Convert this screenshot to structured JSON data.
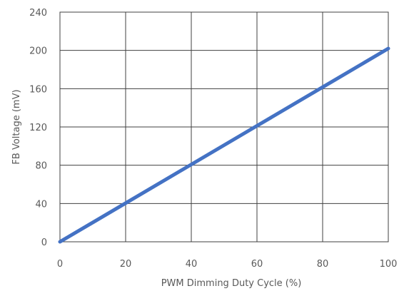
{
  "chart_data": {
    "type": "line",
    "title": "",
    "xlabel": "PWM Dimming Duty Cycle (%)",
    "ylabel": "FB Voltage (mV)",
    "xlim": [
      0,
      100
    ],
    "ylim": [
      0,
      240
    ],
    "x_ticks": [
      0,
      20,
      40,
      60,
      80,
      100
    ],
    "y_ticks": [
      0,
      40,
      80,
      120,
      160,
      200,
      240
    ],
    "grid": true,
    "legend": "none",
    "series": [
      {
        "x": [
          0,
          20,
          40,
          60,
          80,
          100
        ],
        "y": [
          0,
          40.4,
          80.8,
          121.2,
          161.6,
          202
        ],
        "color": "#4472c4"
      }
    ]
  }
}
